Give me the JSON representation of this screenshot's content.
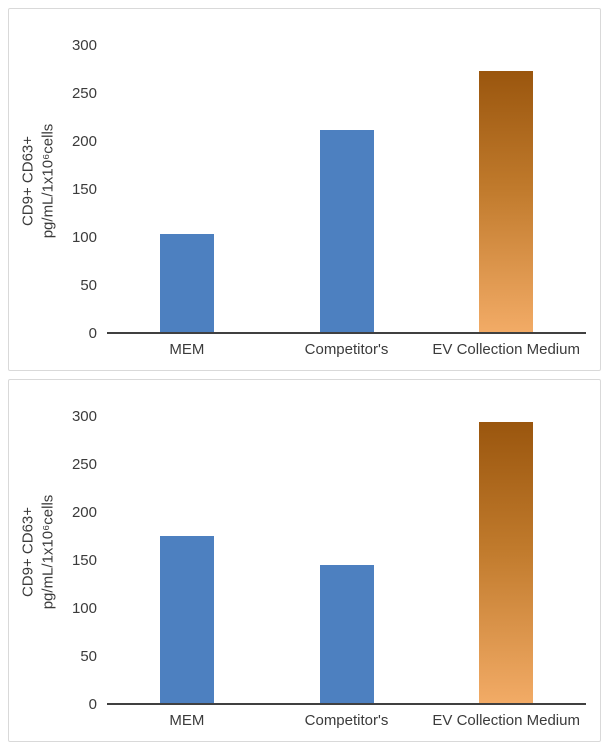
{
  "colors": {
    "bar_blue": "#4D80C0",
    "bar_orange_top": "#9A560E",
    "bar_orange_mid": "#C07A2C",
    "bar_orange_bottom": "#F2AB66",
    "axis": "#404040",
    "chart_border": "#D9D9D9",
    "text": "#3B3B3B"
  },
  "chart_data": [
    {
      "type": "bar",
      "title": "",
      "categories": [
        "MEM",
        "Competitor's",
        "EV Collection Medium"
      ],
      "values": [
        103,
        212,
        274
      ],
      "ylabel": "CD9+ CD63+ pg/mL/1x10⁶cells",
      "ylabel_lines": [
        "CD9+ CD63+",
        "pg/mL/1x10⁶cells"
      ],
      "xlabel": "",
      "yticks": [
        0,
        50,
        100,
        150,
        200,
        250,
        300
      ],
      "ylim": [
        0,
        320
      ],
      "bar_styles": [
        "blue",
        "blue",
        "orange"
      ],
      "grid": false,
      "legend": false
    },
    {
      "type": "bar",
      "title": "",
      "categories": [
        "MEM",
        "Competitor's",
        "EV Collection Medium"
      ],
      "values": [
        175,
        145,
        295
      ],
      "ylabel": "CD9+ CD63+ pg/mL/1x10⁶cells",
      "ylabel_lines": [
        "CD9+ CD63+",
        "pg/mL/1x10⁶cells"
      ],
      "xlabel": "",
      "yticks": [
        0,
        50,
        100,
        150,
        200,
        250,
        300
      ],
      "ylim": [
        0,
        320
      ],
      "bar_styles": [
        "blue",
        "blue",
        "orange"
      ],
      "grid": false,
      "legend": false
    }
  ]
}
